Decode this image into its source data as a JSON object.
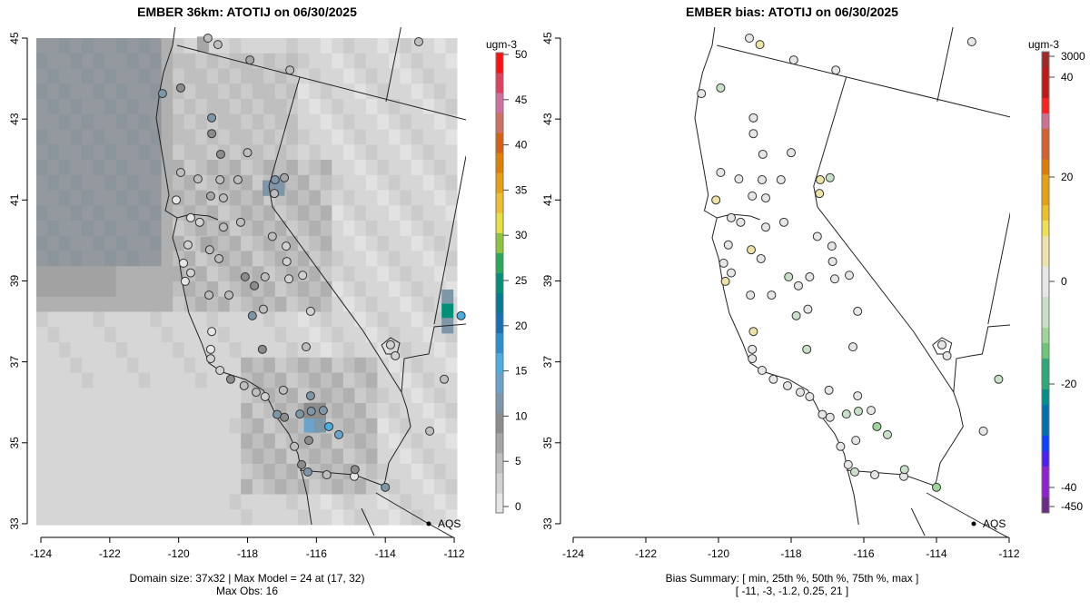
{
  "chart_data": [
    {
      "type": "heatmap",
      "title": "EMBER 36km: ATOTIJ on 06/30/2025",
      "x_ticks": [
        "-124",
        "-122",
        "-120",
        "-118",
        "-116",
        "-114",
        "-112"
      ],
      "y_ticks": [
        "33",
        "35",
        "37",
        "39",
        "41",
        "43",
        "45"
      ],
      "xlim": [
        -124.3,
        -111.7
      ],
      "ylim": [
        32.7,
        45.3
      ],
      "colorbar": {
        "unit": "ugm-3",
        "ticks": [
          "0",
          "5",
          "10",
          "15",
          "20",
          "25",
          "30",
          "35",
          "40",
          "45",
          "50"
        ],
        "range": [
          0,
          50
        ]
      },
      "legend": "AQS",
      "footer": [
        "Domain size: 37x32 | Max Model = 24 at (17, 32)",
        "Max Obs: 16"
      ],
      "grid": {
        "cols": 37,
        "rows": 32,
        "high_cells": [
          {
            "lon": -117.4,
            "lat": 41.3,
            "value": 11
          },
          {
            "lon": -117.1,
            "lat": 41.3,
            "value": 11
          },
          {
            "lon": -112.2,
            "lat": 38.6,
            "value": 12
          },
          {
            "lon": -112.2,
            "lat": 38.25,
            "value": 24
          },
          {
            "lon": -112.2,
            "lat": 37.9,
            "value": 12
          },
          {
            "lon": -116.2,
            "lat": 35.45,
            "value": 13
          },
          {
            "lon": -115.9,
            "lat": 35.45,
            "value": 11
          },
          {
            "lon": -116.2,
            "lat": 35.8,
            "value": 8
          },
          {
            "lon": -115.9,
            "lat": 35.8,
            "value": 8
          },
          {
            "lon": -119.2,
            "lat": 39.9,
            "value": 7
          },
          {
            "lon": -119.3,
            "lat": 44.85,
            "value": 7
          }
        ]
      }
    },
    {
      "type": "scatter",
      "title": "EMBER bias: ATOTIJ on 06/30/2025",
      "x_ticks": [
        "-124",
        "-122",
        "-120",
        "-118",
        "-116",
        "-114",
        "-112"
      ],
      "y_ticks": [
        "33",
        "35",
        "37",
        "39",
        "41",
        "43",
        "45"
      ],
      "colorbar": {
        "unit": "ugm-3",
        "ticks": [
          "3000",
          "40",
          "20",
          "0",
          "-20",
          "-40",
          "-450"
        ]
      },
      "legend": "AQS",
      "footer": [
        "Bias Summary: [ min, 25th %, 50th %, 75th %, max ]",
        "[ -11,   -3,   -1.2,   0.25,   21 ]"
      ]
    }
  ],
  "stations": [
    {
      "lon": -120.47,
      "lat": 43.63,
      "obs": 12,
      "bias": 0
    },
    {
      "lon": -119.15,
      "lat": 45.0,
      "obs": 5,
      "bias": -2
    },
    {
      "lon": -118.86,
      "lat": 44.84,
      "obs": 4,
      "bias": 3
    },
    {
      "lon": -117.93,
      "lat": 44.46,
      "obs": 6,
      "bias": 0
    },
    {
      "lon": -116.77,
      "lat": 44.21,
      "obs": 4,
      "bias": -2
    },
    {
      "lon": -113.03,
      "lat": 44.91,
      "obs": 5,
      "bias": 0
    },
    {
      "lon": -119.94,
      "lat": 43.77,
      "obs": 8,
      "bias": -3
    },
    {
      "lon": -119.04,
      "lat": 43.03,
      "obs": 11,
      "bias": -1
    },
    {
      "lon": -119.04,
      "lat": 42.64,
      "obs": 8,
      "bias": 0
    },
    {
      "lon": -118.78,
      "lat": 42.13,
      "obs": 8,
      "bias": -2
    },
    {
      "lon": -118.0,
      "lat": 42.17,
      "obs": 5,
      "bias": -1
    },
    {
      "lon": -119.94,
      "lat": 41.68,
      "obs": 4,
      "bias": 0
    },
    {
      "lon": -119.44,
      "lat": 41.52,
      "obs": 4,
      "bias": 0
    },
    {
      "lon": -118.8,
      "lat": 41.5,
      "obs": 5,
      "bias": -1
    },
    {
      "lon": -119.07,
      "lat": 41.1,
      "obs": 7,
      "bias": 0
    },
    {
      "lon": -118.7,
      "lat": 41.05,
      "obs": 4,
      "bias": -1
    },
    {
      "lon": -120.07,
      "lat": 41.0,
      "obs": 0,
      "bias": 3
    },
    {
      "lon": -118.28,
      "lat": 41.5,
      "obs": 5,
      "bias": -2
    },
    {
      "lon": -117.2,
      "lat": 41.5,
      "obs": 11,
      "bias": 4
    },
    {
      "lon": -116.93,
      "lat": 41.55,
      "obs": 6,
      "bias": -4
    },
    {
      "lon": -117.22,
      "lat": 41.16,
      "obs": 4,
      "bias": 5
    },
    {
      "lon": -119.65,
      "lat": 40.56,
      "obs": 1,
      "bias": 2
    },
    {
      "lon": -119.39,
      "lat": 40.45,
      "obs": 3,
      "bias": -1
    },
    {
      "lon": -118.2,
      "lat": 40.45,
      "obs": 4,
      "bias": 0
    },
    {
      "lon": -118.7,
      "lat": 40.33,
      "obs": 4,
      "bias": -1
    },
    {
      "lon": -119.73,
      "lat": 39.89,
      "obs": 2,
      "bias": 0
    },
    {
      "lon": -119.1,
      "lat": 39.77,
      "obs": 4,
      "bias": 3
    },
    {
      "lon": -118.83,
      "lat": 39.55,
      "obs": 4,
      "bias": -1
    },
    {
      "lon": -116.88,
      "lat": 39.86,
      "obs": 3,
      "bias": 0
    },
    {
      "lon": -116.86,
      "lat": 39.48,
      "obs": 3,
      "bias": -2
    },
    {
      "lon": -119.86,
      "lat": 39.44,
      "obs": 1,
      "bias": 2
    },
    {
      "lon": -119.65,
      "lat": 39.2,
      "obs": 3,
      "bias": 0
    },
    {
      "lon": -119.81,
      "lat": 38.99,
      "obs": 0,
      "bias": 4
    },
    {
      "lon": -118.07,
      "lat": 39.1,
      "obs": 10,
      "bias": -3
    },
    {
      "lon": -117.49,
      "lat": 39.1,
      "obs": 4,
      "bias": -2
    },
    {
      "lon": -117.8,
      "lat": 38.88,
      "obs": 10,
      "bias": -1
    },
    {
      "lon": -116.4,
      "lat": 39.14,
      "obs": 3,
      "bias": 0
    },
    {
      "lon": -119.12,
      "lat": 38.65,
      "obs": 4,
      "bias": -1
    },
    {
      "lon": -118.54,
      "lat": 38.65,
      "obs": 4,
      "bias": -2
    },
    {
      "lon": -116.8,
      "lat": 39.05,
      "obs": 2,
      "bias": 0
    },
    {
      "lon": -116.17,
      "lat": 38.25,
      "obs": 3,
      "bias": 0
    },
    {
      "lon": -117.86,
      "lat": 38.14,
      "obs": 11,
      "bias": -5
    },
    {
      "lon": -117.54,
      "lat": 38.3,
      "obs": 5,
      "bias": -2
    },
    {
      "lon": -119.04,
      "lat": 37.75,
      "obs": 1,
      "bias": 3
    },
    {
      "lon": -119.07,
      "lat": 37.31,
      "obs": 1,
      "bias": 2
    },
    {
      "lon": -117.57,
      "lat": 37.31,
      "obs": 10,
      "bias": -4
    },
    {
      "lon": -116.3,
      "lat": 37.37,
      "obs": 5,
      "bias": 0
    },
    {
      "lon": -119.07,
      "lat": 37.08,
      "obs": 2,
      "bias": 1
    },
    {
      "lon": -118.8,
      "lat": 36.79,
      "obs": 3,
      "bias": 0
    },
    {
      "lon": -118.49,
      "lat": 36.57,
      "obs": 9,
      "bias": -1
    },
    {
      "lon": -118.1,
      "lat": 36.41,
      "obs": 4,
      "bias": 0
    },
    {
      "lon": -117.75,
      "lat": 36.25,
      "obs": 4,
      "bias": -1
    },
    {
      "lon": -117.49,
      "lat": 36.14,
      "obs": 3,
      "bias": 0
    },
    {
      "lon": -116.96,
      "lat": 36.3,
      "obs": 4,
      "bias": -1
    },
    {
      "lon": -116.17,
      "lat": 36.16,
      "obs": 11,
      "bias": 0
    },
    {
      "lon": -116.15,
      "lat": 35.78,
      "obs": 11,
      "bias": -3
    },
    {
      "lon": -115.8,
      "lat": 35.8,
      "obs": 12,
      "bias": 0
    },
    {
      "lon": -117.14,
      "lat": 35.7,
      "obs": 12,
      "bias": -1
    },
    {
      "lon": -116.48,
      "lat": 35.71,
      "obs": 11,
      "bias": -3
    },
    {
      "lon": -116.93,
      "lat": 35.63,
      "obs": 10,
      "bias": -2
    },
    {
      "lon": -115.64,
      "lat": 35.4,
      "obs": 16,
      "bias": -8
    },
    {
      "lon": -115.35,
      "lat": 35.2,
      "obs": 13,
      "bias": -6
    },
    {
      "lon": -116.22,
      "lat": 35.06,
      "obs": 10,
      "bias": -1
    },
    {
      "lon": -116.64,
      "lat": 34.91,
      "obs": 4,
      "bias": 0
    },
    {
      "lon": -116.43,
      "lat": 34.46,
      "obs": 10,
      "bias": -2
    },
    {
      "lon": -116.25,
      "lat": 34.28,
      "obs": 11,
      "bias": -3
    },
    {
      "lon": -115.7,
      "lat": 34.21,
      "obs": 4,
      "bias": 0
    },
    {
      "lon": -114.9,
      "lat": 34.17,
      "obs": 0,
      "bias": 0
    },
    {
      "lon": -114.88,
      "lat": 34.34,
      "obs": 10,
      "bias": -3
    },
    {
      "lon": -114.0,
      "lat": 33.9,
      "obs": 12,
      "bias": -11
    },
    {
      "lon": -113.71,
      "lat": 37.15,
      "obs": 2,
      "bias": 0
    },
    {
      "lon": -112.29,
      "lat": 36.57,
      "obs": 5,
      "bias": -3
    },
    {
      "lon": -112.71,
      "lat": 35.29,
      "obs": 5,
      "bias": -2
    },
    {
      "lon": -111.8,
      "lat": 38.14,
      "obs": 16,
      "bias": 21
    },
    {
      "lon": -113.85,
      "lat": 37.42,
      "obs": 2,
      "bias": -1
    },
    {
      "lon": -117.28,
      "lat": 40.1,
      "obs": 4,
      "bias": 0
    }
  ],
  "colors": {
    "obs_scale": [
      "#e6e6e6",
      "#d2d2d2",
      "#bebebe",
      "#a6a6a6",
      "#8c8c8c",
      "#7e97a8",
      "#6aa4cc",
      "#4aaee0",
      "#2a90d0",
      "#1670b8",
      "#007b93",
      "#00907a",
      "#2aa85a",
      "#8cc43c",
      "#e8e040",
      "#eec030",
      "#e8a010",
      "#e08000",
      "#d86010",
      "#d07060",
      "#d070a0",
      "#e04060",
      "#ff1010"
    ],
    "bias_neg": [
      "#e6e6e6",
      "#c8e0c8",
      "#9ed69a",
      "#6cc878",
      "#2aaa78",
      "#008f8a",
      "#0070b0",
      "#1040ff",
      "#5020f0",
      "#9020d0",
      "#6a2a8a"
    ],
    "bias_pos": [
      "#e6e6e6",
      "#ede3a6",
      "#f0e050",
      "#eec028",
      "#e8a010",
      "#e07c00",
      "#d86030",
      "#d07090",
      "#ff2020",
      "#c01818",
      "#a02828"
    ]
  }
}
